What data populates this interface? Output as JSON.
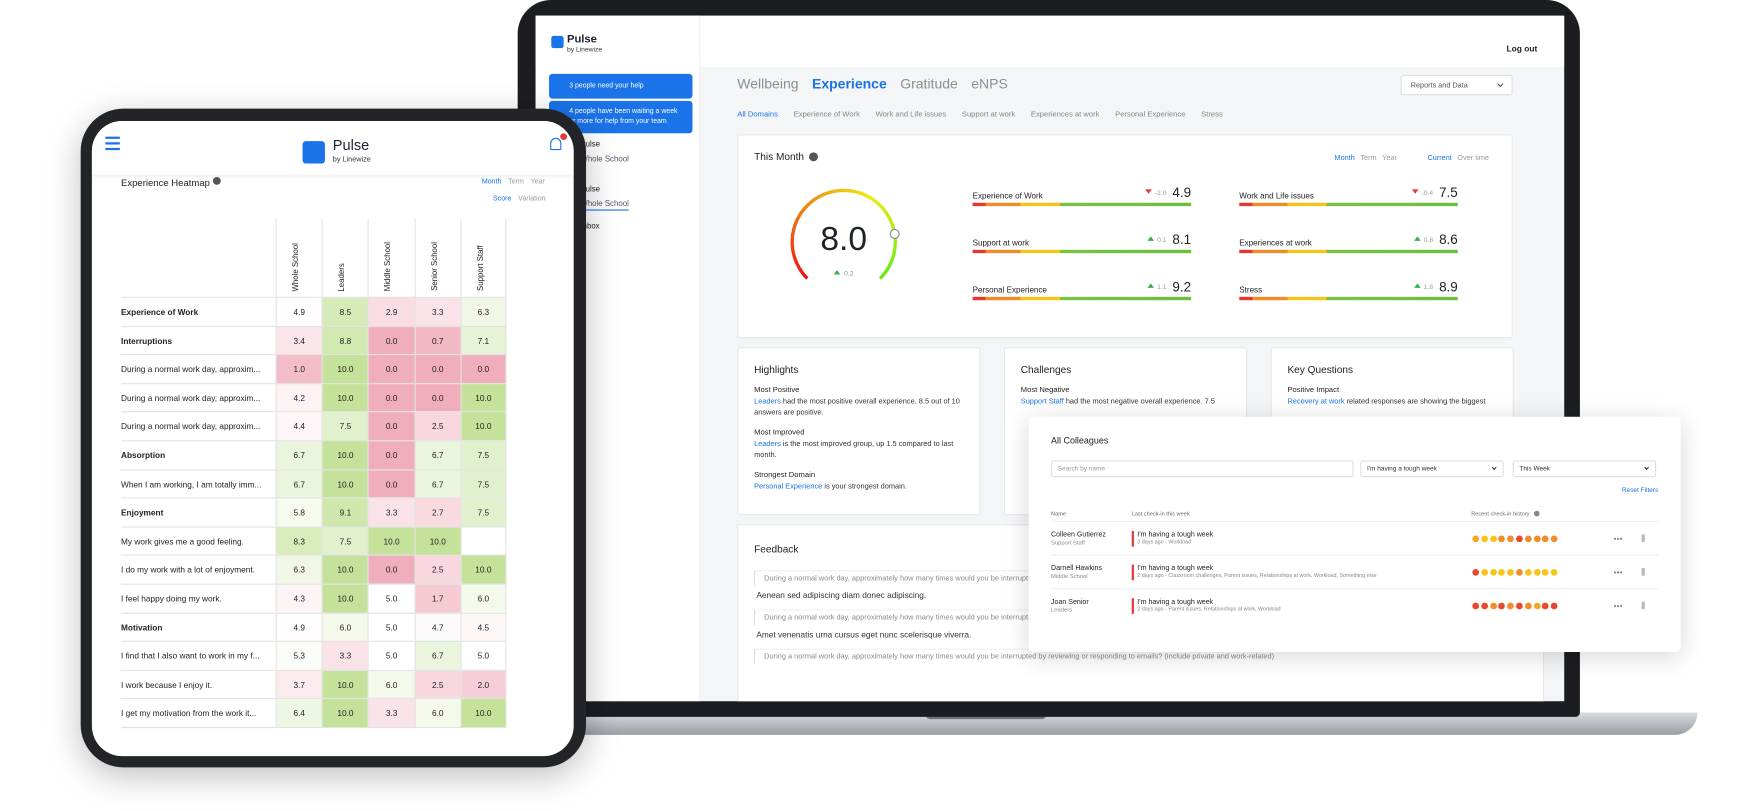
{
  "laptop": {
    "brand": {
      "name": "Pulse",
      "byline": "by Linewize"
    },
    "logout": "Log out",
    "alerts": [
      "3 people need your help",
      "4 people have been waiting a week or more for help from your team"
    ],
    "sidebar": [
      "Pulse",
      "Whole School",
      "Pulse",
      "Whole School",
      "Inbox"
    ],
    "tabs": [
      "Wellbeing",
      "Experience",
      "Gratitude",
      "eNPS"
    ],
    "reports": "Reports and Data",
    "subtabs": [
      "All Domains",
      "Experience of Work",
      "Work and Life issues",
      "Support at work",
      "Experiences at work",
      "Personal Experience",
      "Stress"
    ],
    "this_month": {
      "title": "This Month",
      "periods": [
        "Month",
        "Term",
        "Year"
      ],
      "modes": [
        "Current",
        "Over time"
      ],
      "score": "8.0",
      "score_change": "0.2",
      "domains": [
        {
          "name": "Experience of Work",
          "change": "-2.0",
          "score": "4.9"
        },
        {
          "name": "Support at work",
          "change": "0.1",
          "score": "8.1"
        },
        {
          "name": "Personal Experience",
          "change": "1.1",
          "score": "9.2"
        },
        {
          "name": "Work and Life issues",
          "change": "-0.4",
          "score": "7.5"
        },
        {
          "name": "Experiences at work",
          "change": "0.8",
          "score": "8.6"
        },
        {
          "name": "Stress",
          "change": "1.8",
          "score": "8.9"
        }
      ]
    },
    "cards": [
      {
        "title": "Highlights",
        "items": [
          {
            "heading": "Most Positive",
            "link": "Leaders",
            "text": " had the most positive overall experience. 8.5 out of 10 answers are positive."
          },
          {
            "heading": "Most Improved",
            "link": "Leaders",
            "text": " is the most improved group, up 1.5 compared to last month."
          },
          {
            "heading": "Strongest Domain",
            "link": "Personal Experience",
            "text": " is your strongest domain."
          }
        ]
      },
      {
        "title": "Challenges",
        "items": [
          {
            "heading": "Most Negative",
            "link": "Support Staff",
            "text": " had the most negative overall experience. 7.5"
          }
        ]
      },
      {
        "title": "Key Questions",
        "items": [
          {
            "heading": "Positive Impact",
            "link": "Recovery at work",
            "text": " related responses are showing the biggest"
          }
        ]
      }
    ],
    "feedback": {
      "title": "Feedback",
      "quotes": [
        {
          "question": "During a normal work day, approximately how many times would you be interrupted",
          "answer": "Aenean sed adipiscing diam donec adipiscing."
        },
        {
          "question": "During a normal work day, approximately how many times would you be interrupted",
          "answer": "Amet venenatis urna cursus eget nunc scelerisque viverra."
        },
        {
          "question": "During a normal work day, approximately how many times would you be interrupted by reviewing or responding to emails? (include private and work-related)"
        }
      ]
    }
  },
  "colleagues": {
    "title": "All Colleagues",
    "search": "Search by name",
    "filters": [
      "I'm having a tough week",
      "This Week"
    ],
    "reset": "Reset Filters",
    "headers": [
      "Name",
      "Last check-in this week",
      "Recent check-in history"
    ],
    "rows": [
      {
        "name": "Colleen Gutierrez",
        "role": "Support Staff",
        "status": "I'm having a tough week",
        "detail": "3 days ago - Workload",
        "history": [
          "#f5a623",
          "#f5c518",
          "#f5c518",
          "#f28c28",
          "#f28c28",
          "#e8492e",
          "#f28c28",
          "#f28c28",
          "#f28c28",
          "#f28c28"
        ]
      },
      {
        "name": "Darnell Hawkins",
        "role": "Middle School",
        "status": "I'm having a tough week",
        "detail": "2 days ago - Classroom challenges, Parent issues, Relationships at work, Workload, Something else",
        "history": [
          "#e8492e",
          "#f5c518",
          "#f5c518",
          "#f5c518",
          "#f5c518",
          "#f28c28",
          "#f5c518",
          "#f5c518",
          "#f5c518",
          "#f5c518"
        ]
      },
      {
        "name": "Joan Senior",
        "role": "Leaders",
        "status": "I'm having a tough week",
        "detail": "2 days ago - Parent issues, Relationships at work, Workload",
        "history": [
          "#e8492e",
          "#e8492e",
          "#f28c28",
          "#e8492e",
          "#f28c28",
          "#e8492e",
          "#f28c28",
          "#f5a623",
          "#e8492e",
          "#e8492e"
        ]
      }
    ]
  },
  "tablet": {
    "brand": {
      "name": "Pulse",
      "byline": "by Linewize"
    },
    "heatmap": {
      "title": "Experience Heatmap",
      "periods": [
        "Month",
        "Term",
        "Year"
      ],
      "modes": [
        "Score",
        "Variation"
      ],
      "columns": [
        "Whole School",
        "Leaders",
        "Middle School",
        "Senior School",
        "Support Staff"
      ],
      "total": {
        "label": "Experience of Work",
        "values": [
          "4.9",
          "8.5",
          "2.9",
          "3.3",
          "6.3"
        ]
      },
      "groups": [
        {
          "label": "Interruptions",
          "values": [
            "3.4",
            "8.8",
            "0.0",
            "0.7",
            "7.1"
          ],
          "items": [
            {
              "label": "During a normal work day, approxim...",
              "values": [
                "1.0",
                "10.0",
                "0.0",
                "0.0",
                "0.0"
              ]
            },
            {
              "label": "During a normal work day, approxim...",
              "values": [
                "4.2",
                "10.0",
                "0.0",
                "0.0",
                "10.0"
              ]
            },
            {
              "label": "During a normal work day, approxim...",
              "values": [
                "4.4",
                "7.5",
                "0.0",
                "2.5",
                "10.0"
              ]
            }
          ]
        },
        {
          "label": "Absorption",
          "values": [
            "6.7",
            "10.0",
            "0.0",
            "6.7",
            "7.5"
          ],
          "items": [
            {
              "label": "When I am working, I am totally imm...",
              "values": [
                "6.7",
                "10.0",
                "0.0",
                "6.7",
                "7.5"
              ]
            }
          ]
        },
        {
          "label": "Enjoyment",
          "values": [
            "5.8",
            "9.1",
            "3.3",
            "2.7",
            "7.5"
          ],
          "items": [
            {
              "label": "My work gives me a good feeling.",
              "values": [
                "8.3",
                "7.5",
                "10.0",
                "10.0",
                null
              ]
            },
            {
              "label": "I do my work with a lot of enjoyment.",
              "values": [
                "6.3",
                "10.0",
                "0.0",
                "2.5",
                "10.0"
              ]
            },
            {
              "label": "I feel happy doing my work.",
              "values": [
                "4.3",
                "10.0",
                "5.0",
                "1.7",
                "6.0"
              ]
            }
          ]
        },
        {
          "label": "Motivation",
          "values": [
            "4.9",
            "6.0",
            "5.0",
            "4.7",
            "4.5"
          ],
          "items": [
            {
              "label": "I find that I also want to work in my f...",
              "values": [
                "5.3",
                "3.3",
                "5.0",
                "6.7",
                "5.0"
              ]
            },
            {
              "label": "I work because I enjoy it.",
              "values": [
                "3.7",
                "10.0",
                "6.0",
                "2.5",
                "2.0"
              ]
            },
            {
              "label": "I get my motivation from the work it...",
              "values": [
                "6.4",
                "10.0",
                "3.3",
                "6.0",
                "10.0"
              ]
            }
          ]
        }
      ]
    }
  }
}
